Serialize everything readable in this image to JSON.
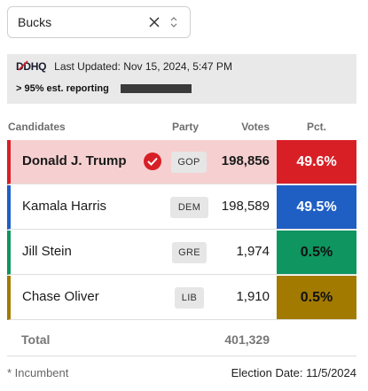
{
  "selector": {
    "value": "Bucks"
  },
  "header": {
    "logo": "DDHQ",
    "last_updated": "Last Updated: Nov 15, 2024, 5:47 PM",
    "reporting": "> 95% est. reporting"
  },
  "table": {
    "columns": {
      "candidates": "Candidates",
      "party": "Party",
      "votes": "Votes",
      "pct": "Pct."
    },
    "rows": [
      {
        "name": "Donald J. Trump",
        "party": "GOP",
        "votes": "198,856",
        "pct": "49.6%",
        "color": "#d81f26",
        "row_bg": "#f6d0d0",
        "winner": true
      },
      {
        "name": "Kamala Harris",
        "party": "DEM",
        "votes": "198,589",
        "pct": "49.5%",
        "color": "#1f5fc4",
        "row_bg": "#ffffff",
        "winner": false
      },
      {
        "name": "Jill Stein",
        "party": "GRE",
        "votes": "1,974",
        "pct": "0.5%",
        "color": "#0e9560",
        "row_bg": "#ffffff",
        "winner": false
      },
      {
        "name": "Chase Oliver",
        "party": "LIB",
        "votes": "1,910",
        "pct": "0.5%",
        "color": "#a27a00",
        "row_bg": "#ffffff",
        "winner": false
      }
    ],
    "total": {
      "label": "Total",
      "votes": "401,329"
    }
  },
  "footer": {
    "incumbent": "* Incumbent",
    "election_date": "Election Date: 11/5/2024"
  }
}
